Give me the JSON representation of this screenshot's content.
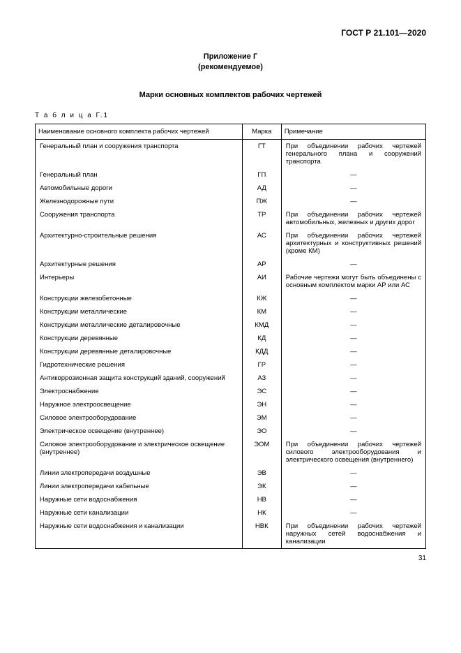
{
  "header": "ГОСТ Р 21.101—2020",
  "appendix_line1": "Приложение Г",
  "appendix_line2": "(рекомендуемое)",
  "title": "Марки основных комплектов рабочих чертежей",
  "table_label": "Т а б л и ц а  Г.1",
  "columns": {
    "name": "Наименование основного комплекта рабочих чертежей",
    "mark": "Марка",
    "note": "Примечание"
  },
  "rows": [
    {
      "name": "Генеральный план и сооружения транспорта",
      "mark": "ГТ",
      "note": "При объединении рабочих чертежей генерального плана и сооружений транспорта"
    },
    {
      "name": "Генеральный план",
      "mark": "ГП",
      "note": "—"
    },
    {
      "name": "Автомобильные дороги",
      "mark": "АД",
      "note": "—"
    },
    {
      "name": "Железнодорожные пути",
      "mark": "ПЖ",
      "note": "—"
    },
    {
      "name": "Сооружения транспорта",
      "mark": "ТР",
      "note": "При объединении рабочих чертежей автомобильных, железных и других дорог"
    },
    {
      "name": "Архитектурно-строительные решения",
      "mark": "АС",
      "note": "При объединении рабочих чертежей архитектурных и конструктивных решений (кроме КМ)"
    },
    {
      "name": "Архитектурные решения",
      "mark": "АР",
      "note": "—"
    },
    {
      "name": "Интерьеры",
      "mark": "АИ",
      "note": "Рабочие чертежи могут быть объединены с основным комплектом марки АР или АС"
    },
    {
      "name": "Конструкции железобетонные",
      "mark": "КЖ",
      "note": "—"
    },
    {
      "name": "Конструкции металлические",
      "mark": "КМ",
      "note": "—"
    },
    {
      "name": "Конструкции металлические деталировочные",
      "mark": "КМД",
      "note": "—"
    },
    {
      "name": "Конструкции деревянные",
      "mark": "КД",
      "note": "—"
    },
    {
      "name": "Конструкции деревянные деталировочные",
      "mark": "КДД",
      "note": "—"
    },
    {
      "name": "Гидротехнические решения",
      "mark": "ГР",
      "note": "—"
    },
    {
      "name": "Антикоррозионная защита конструкций зданий, сооружений",
      "mark": "АЗ",
      "note": "—"
    },
    {
      "name": "Электроснабжение",
      "mark": "ЭС",
      "note": "—"
    },
    {
      "name": "Наружное электроосвещение",
      "mark": "ЭН",
      "note": "—"
    },
    {
      "name": "Силовое электрооборудование",
      "mark": "ЭМ",
      "note": "—"
    },
    {
      "name": "Электрическое освещение (внутреннее)",
      "mark": "ЭО",
      "note": "—"
    },
    {
      "name": "Силовое электрооборудование и электрическое освещение (внутреннее)",
      "mark": "ЭОМ",
      "note": "При объединении рабочих чертежей силового электрооборудования и электрического освещения (внутреннего)"
    },
    {
      "name": "Линии электропередачи воздушные",
      "mark": "ЭВ",
      "note": "—"
    },
    {
      "name": "Линии электропередачи кабельные",
      "mark": "ЭК",
      "note": "—"
    },
    {
      "name": "Наружные сети водоснабжения",
      "mark": "НВ",
      "note": "—"
    },
    {
      "name": "Наружные сети канализации",
      "mark": "НК",
      "note": "—"
    },
    {
      "name": "Наружные сети водоснабжения и канализации",
      "mark": "НВК",
      "note": "При объединении рабочих чертежей наружных сетей водоснабжения и канализации"
    }
  ],
  "page_number": "31"
}
